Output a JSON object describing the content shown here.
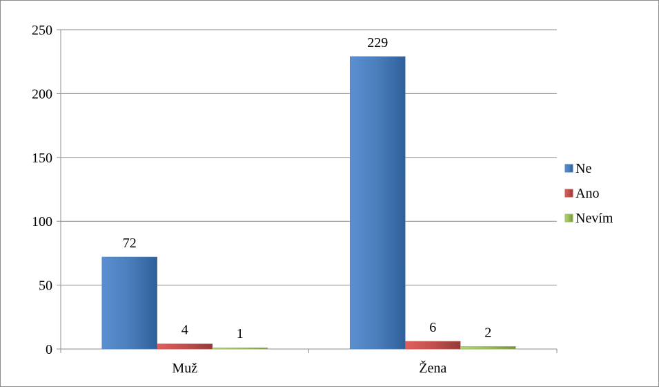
{
  "chart_data": {
    "type": "bar",
    "title": "",
    "xlabel": "",
    "ylabel": "",
    "categories": [
      "Muž",
      "Žena"
    ],
    "series": [
      {
        "name": "Ne",
        "values": [
          72,
          229
        ],
        "color": "#4a7ebb"
      },
      {
        "name": "Ano",
        "values": [
          4,
          6
        ],
        "color": "#c0504d"
      },
      {
        "name": "Nevím",
        "values": [
          1,
          2
        ],
        "color": "#9bbb59"
      }
    ],
    "ylim": [
      0,
      250
    ],
    "yticks": [
      0,
      50,
      100,
      150,
      200,
      250
    ],
    "grid": true,
    "legend": "right",
    "data_labels": true
  }
}
